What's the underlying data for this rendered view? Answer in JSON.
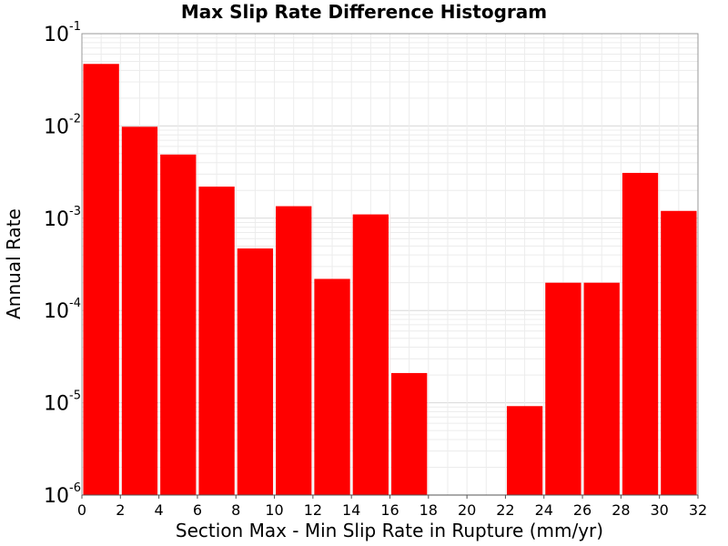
{
  "chart_data": {
    "type": "bar",
    "title": "Max Slip Rate Difference Histogram",
    "xlabel": "Section Max - Min Slip Rate in Rupture (mm/yr)",
    "ylabel": "Annual Rate",
    "y_scale": "log",
    "ylim": [
      1e-06,
      0.1
    ],
    "xlim": [
      0,
      32
    ],
    "x_ticks": [
      "0",
      "2",
      "4",
      "6",
      "8",
      "10",
      "12",
      "14",
      "16",
      "18",
      "20",
      "22",
      "24",
      "26",
      "28",
      "30",
      "32"
    ],
    "y_ticks": [
      {
        "base": "10",
        "exp": "-6"
      },
      {
        "base": "10",
        "exp": "-5"
      },
      {
        "base": "10",
        "exp": "-4"
      },
      {
        "base": "10",
        "exp": "-3"
      },
      {
        "base": "10",
        "exp": "-2"
      },
      {
        "base": "10",
        "exp": "-1"
      }
    ],
    "bar_color": "#ff0000",
    "grid": true,
    "bins": [
      {
        "x0": 0,
        "x1": 2,
        "value": 0.047
      },
      {
        "x0": 2,
        "x1": 4,
        "value": 0.0098
      },
      {
        "x0": 4,
        "x1": 6,
        "value": 0.0049
      },
      {
        "x0": 6,
        "x1": 8,
        "value": 0.0022
      },
      {
        "x0": 8,
        "x1": 10,
        "value": 0.00047
      },
      {
        "x0": 10,
        "x1": 12,
        "value": 0.00135
      },
      {
        "x0": 12,
        "x1": 14,
        "value": 0.00022
      },
      {
        "x0": 14,
        "x1": 16,
        "value": 0.0011
      },
      {
        "x0": 16,
        "x1": 18,
        "value": 2.1e-05
      },
      {
        "x0": 18,
        "x1": 20,
        "value": 0
      },
      {
        "x0": 20,
        "x1": 22,
        "value": 0
      },
      {
        "x0": 22,
        "x1": 24,
        "value": 9.2e-06
      },
      {
        "x0": 24,
        "x1": 26,
        "value": 0.0002
      },
      {
        "x0": 26,
        "x1": 28,
        "value": 0.0002
      },
      {
        "x0": 28,
        "x1": 30,
        "value": 0.0031
      },
      {
        "x0": 30,
        "x1": 32,
        "value": 0.0012
      }
    ]
  }
}
